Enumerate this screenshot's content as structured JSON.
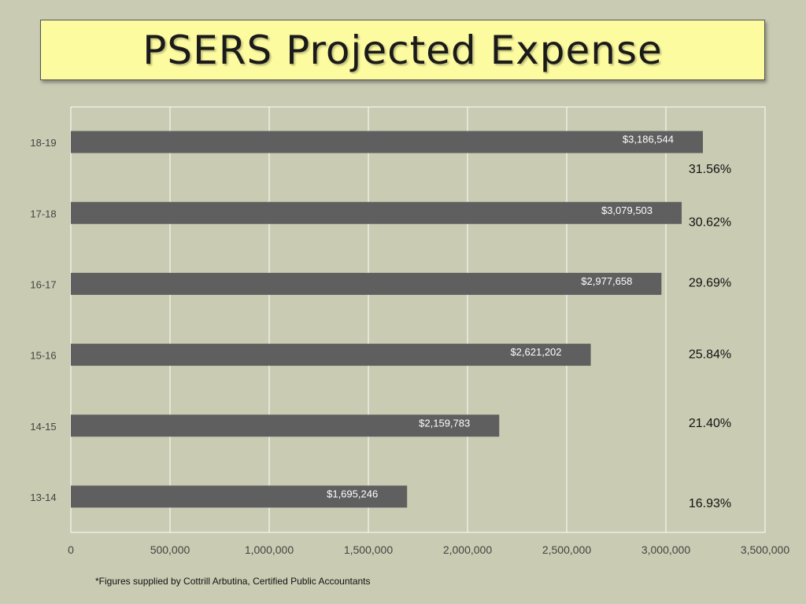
{
  "title": "PSERS Projected Expense",
  "footnote": "*Figures supplied by Cottrill Arbutina, Certified Public Accountants",
  "colors": {
    "background": "#c9cbb2",
    "title_bg": "#fdfba0",
    "bar": "#5f5f5f",
    "grid": "#ffffff"
  },
  "chart_data": {
    "type": "bar",
    "orientation": "horizontal",
    "categories": [
      "18-19",
      "17-18",
      "16-17",
      "15-16",
      "14-15",
      "13-14"
    ],
    "values": [
      3186544,
      3079503,
      2977658,
      2621202,
      2159783,
      1695246
    ],
    "value_labels": [
      "$3,186,544",
      "$3,079,503",
      "$2,977,658",
      "$2,621,202",
      "$2,159,783",
      "$1,695,246"
    ],
    "percent_labels": [
      "31.56%",
      "30.62%",
      "29.69%",
      "25.84%",
      "21.40%",
      "16.93%"
    ],
    "xlim": [
      0,
      3500000
    ],
    "xticks": [
      0,
      500000,
      1000000,
      1500000,
      2000000,
      2500000,
      3000000,
      3500000
    ],
    "xtick_labels": [
      "0",
      "500,000",
      "1,000,000",
      "1,500,000",
      "2,000,000",
      "2,500,000",
      "3,000,000",
      "3,500,000"
    ],
    "grid": true,
    "legend": false
  }
}
